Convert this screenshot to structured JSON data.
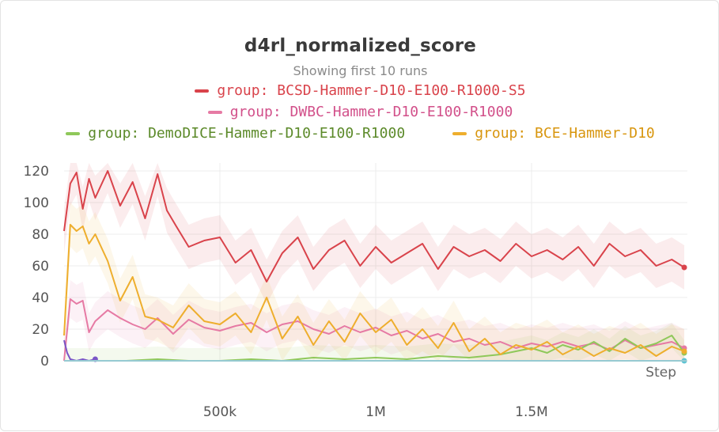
{
  "chart_data": {
    "type": "line",
    "title": "d4rl_normalized_score",
    "subtitle": "Showing first 10 runs",
    "xlabel": "Step",
    "ylabel": "",
    "xlim": [
      0,
      2000000
    ],
    "ylim": [
      0,
      125
    ],
    "xticks": [
      500000,
      1000000,
      1500000
    ],
    "xtick_labels": [
      "500k",
      "1M",
      "1.5M"
    ],
    "yticks": [
      0,
      20,
      40,
      60,
      80,
      100,
      120
    ],
    "ytick_labels": [
      "0",
      "20",
      "40",
      "60",
      "80",
      "100",
      "120"
    ],
    "grid": true,
    "legend_position": "top",
    "series": [
      {
        "name": "group: BCSD-Hammer-D10-E100-R1000-S5",
        "color": "#d9434b",
        "x": [
          0,
          20000,
          40000,
          60000,
          80000,
          100000,
          140000,
          180000,
          220000,
          260000,
          300000,
          330000,
          360000,
          400000,
          450000,
          500000,
          550000,
          600000,
          650000,
          700000,
          750000,
          800000,
          850000,
          900000,
          950000,
          1000000,
          1050000,
          1100000,
          1150000,
          1200000,
          1250000,
          1300000,
          1350000,
          1400000,
          1450000,
          1500000,
          1550000,
          1600000,
          1650000,
          1700000,
          1750000,
          1800000,
          1850000,
          1900000,
          1950000,
          1990000
        ],
        "values": [
          82,
          112,
          119,
          96,
          115,
          103,
          120,
          98,
          113,
          90,
          118,
          95,
          85,
          72,
          76,
          78,
          62,
          70,
          50,
          68,
          78,
          58,
          70,
          76,
          60,
          72,
          62,
          68,
          74,
          58,
          72,
          66,
          70,
          63,
          74,
          66,
          70,
          64,
          72,
          60,
          74,
          66,
          70,
          60,
          64,
          59
        ]
      },
      {
        "name": "group: DWBC-Hammer-D10-E100-R1000",
        "color": "#e67aa4",
        "x": [
          0,
          20000,
          40000,
          60000,
          80000,
          100000,
          140000,
          180000,
          220000,
          260000,
          300000,
          350000,
          400000,
          450000,
          500000,
          550000,
          600000,
          650000,
          700000,
          750000,
          800000,
          850000,
          900000,
          950000,
          1000000,
          1050000,
          1100000,
          1150000,
          1200000,
          1250000,
          1300000,
          1350000,
          1400000,
          1450000,
          1500000,
          1550000,
          1600000,
          1650000,
          1700000,
          1750000,
          1800000,
          1850000,
          1900000,
          1950000,
          1990000
        ],
        "values": [
          0,
          39,
          36,
          38,
          18,
          25,
          32,
          27,
          23,
          20,
          27,
          17,
          26,
          21,
          19,
          22,
          24,
          18,
          23,
          25,
          20,
          17,
          22,
          18,
          21,
          16,
          19,
          14,
          17,
          12,
          14,
          10,
          12,
          8,
          11,
          9,
          12,
          9,
          11,
          7,
          13,
          8,
          10,
          12,
          8
        ]
      },
      {
        "name": "group: DemoDICE-Hammer-D10-E100-R1000",
        "color": "#8fc85a",
        "x": [
          0,
          100000,
          200000,
          300000,
          400000,
          500000,
          600000,
          700000,
          800000,
          900000,
          1000000,
          1100000,
          1200000,
          1300000,
          1400000,
          1450000,
          1500000,
          1550000,
          1600000,
          1650000,
          1700000,
          1750000,
          1800000,
          1850000,
          1900000,
          1950000,
          1990000
        ],
        "values": [
          0,
          0,
          0,
          1,
          0,
          0,
          1,
          0,
          2,
          1,
          2,
          1,
          3,
          2,
          4,
          6,
          8,
          5,
          10,
          7,
          12,
          6,
          14,
          8,
          11,
          16,
          5
        ]
      },
      {
        "name": "group: BCE-Hammer-D10",
        "color": "#eeae2d",
        "x": [
          0,
          20000,
          40000,
          60000,
          80000,
          100000,
          140000,
          180000,
          220000,
          260000,
          300000,
          350000,
          400000,
          450000,
          500000,
          550000,
          600000,
          650000,
          700000,
          750000,
          800000,
          850000,
          900000,
          950000,
          1000000,
          1050000,
          1100000,
          1150000,
          1200000,
          1250000,
          1300000,
          1350000,
          1400000,
          1450000,
          1500000,
          1550000,
          1600000,
          1650000,
          1700000,
          1750000,
          1800000,
          1850000,
          1900000,
          1950000,
          1990000
        ],
        "values": [
          16,
          86,
          82,
          85,
          74,
          80,
          63,
          38,
          53,
          28,
          26,
          21,
          35,
          25,
          23,
          30,
          18,
          40,
          14,
          28,
          10,
          25,
          12,
          30,
          18,
          26,
          10,
          20,
          8,
          24,
          6,
          14,
          4,
          10,
          7,
          12,
          4,
          9,
          3,
          8,
          5,
          10,
          3,
          9,
          6
        ]
      },
      {
        "name": "",
        "color": "#7b55c7",
        "x": [
          0,
          10000,
          20000,
          40000,
          60000,
          80000,
          100000
        ],
        "values": [
          13,
          5,
          1,
          0,
          1,
          0,
          1
        ]
      },
      {
        "name": "",
        "color": "#5ec4d4",
        "x": [
          0,
          500000,
          1000000,
          1500000,
          1990000
        ],
        "values": [
          0,
          0,
          0,
          0,
          0
        ]
      }
    ]
  }
}
